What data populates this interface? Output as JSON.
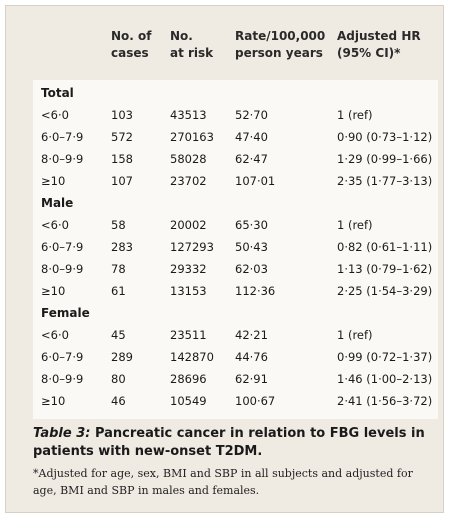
{
  "headers": {
    "cases": [
      "No. of",
      "cases"
    ],
    "risk": [
      "No.",
      "at risk"
    ],
    "rate": [
      "Rate/100,000",
      "person years"
    ],
    "hr": [
      "Adjusted HR",
      "(95% CI)*"
    ]
  },
  "groups": [
    {
      "name": "Total",
      "rows": [
        {
          "level": "<6·0",
          "cases": "103",
          "risk": "43513",
          "rate": "52·70",
          "hr": "1 (ref)"
        },
        {
          "level": "6·0–7·9",
          "cases": "572",
          "risk": "270163",
          "rate": "47·40",
          "hr": "0·90 (0·73–1·12)"
        },
        {
          "level": "8·0–9·9",
          "cases": "158",
          "risk": "58028",
          "rate": "62·47",
          "hr": "1·29 (0·99–1·66)"
        },
        {
          "level": "≥10",
          "cases": "107",
          "risk": "23702",
          "rate": "107·01",
          "hr": "2·35 (1·77–3·13)"
        }
      ]
    },
    {
      "name": "Male",
      "rows": [
        {
          "level": "<6·0",
          "cases": "58",
          "risk": "20002",
          "rate": "65·30",
          "hr": "1 (ref)"
        },
        {
          "level": "6·0–7·9",
          "cases": "283",
          "risk": "127293",
          "rate": "50·43",
          "hr": "0·82 (0·61–1·11)"
        },
        {
          "level": "8·0–9·9",
          "cases": "78",
          "risk": "29332",
          "rate": "62·03",
          "hr": "1·13 (0·79–1·62)"
        },
        {
          "level": "≥10",
          "cases": "61",
          "risk": "13153",
          "rate": "112·36",
          "hr": "2·25 (1·54–3·29)"
        }
      ]
    },
    {
      "name": "Female",
      "rows": [
        {
          "level": "<6·0",
          "cases": "45",
          "risk": "23511",
          "rate": "42·21",
          "hr": "1 (ref)"
        },
        {
          "level": "6·0–7·9",
          "cases": "289",
          "risk": "142870",
          "rate": "44·76",
          "hr": "0·99 (0·72–1·37)"
        },
        {
          "level": "8·0–9·9",
          "cases": "80",
          "risk": "28696",
          "rate": "62·91",
          "hr": "1·46 (1·00–2·13)"
        },
        {
          "level": "≥10",
          "cases": "46",
          "risk": "10549",
          "rate": "100·67",
          "hr": "2·41 (1·56–3·72)"
        }
      ]
    }
  ],
  "caption": {
    "label": "Table 3:",
    "title": " Pancreatic cancer in relation to FBG levels in patients with new-onset T2DM.",
    "note": "*Adjusted for age, sex, BMI and SBP in all subjects and adjusted for age, BMI and SBP in males and females."
  }
}
